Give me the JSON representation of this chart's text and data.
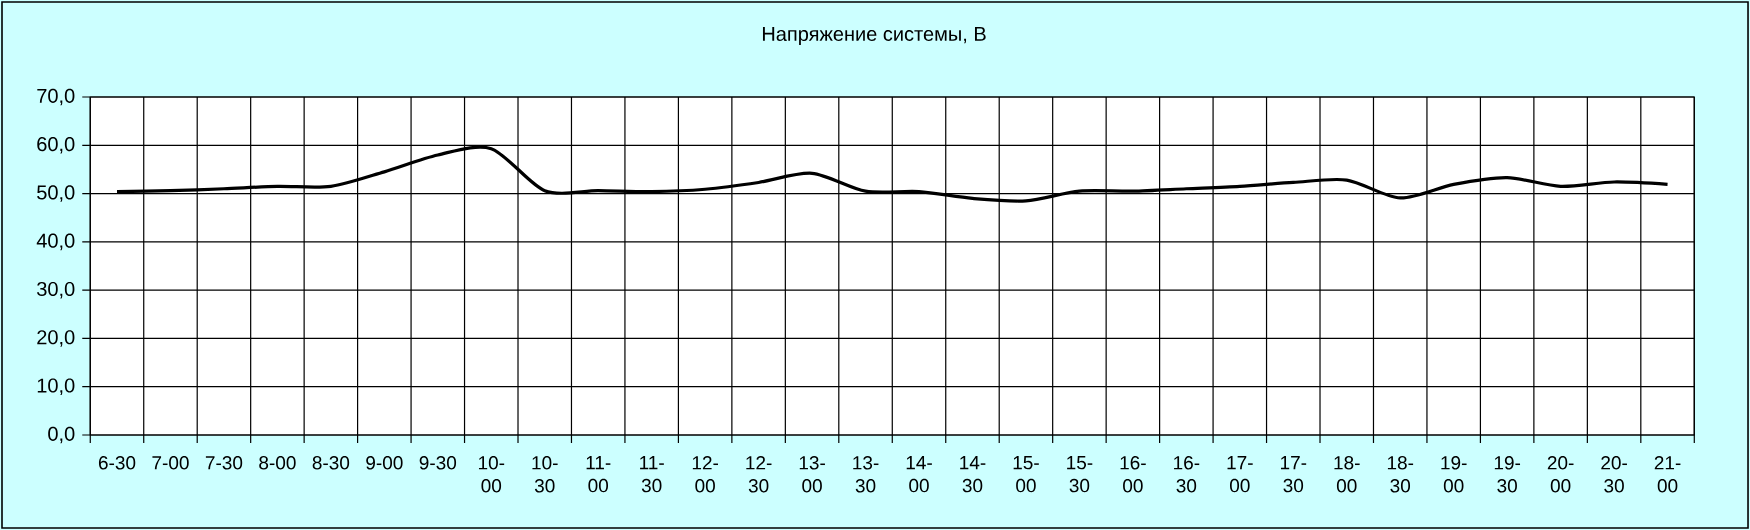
{
  "chart_data": {
    "type": "line",
    "title": "Напряжение системы, В",
    "categories": [
      "6-30",
      "7-00",
      "7-30",
      "8-00",
      "8-30",
      "9-00",
      "9-30",
      "10-00",
      "10-30",
      "11-00",
      "11-30",
      "12-00",
      "12-30",
      "13-00",
      "13-30",
      "14-00",
      "14-30",
      "15-00",
      "15-30",
      "16-00",
      "16-30",
      "17-00",
      "17-30",
      "18-00",
      "18-30",
      "19-00",
      "19-30",
      "20-00",
      "20-30",
      "21-00"
    ],
    "values": [
      50.4,
      50.6,
      51.0,
      51.5,
      51.5,
      54.5,
      58.0,
      59.3,
      50.6,
      50.6,
      50.4,
      50.9,
      52.3,
      54.2,
      50.5,
      50.4,
      49.0,
      48.5,
      50.5,
      50.5,
      51.0,
      51.5,
      52.3,
      52.8,
      49.1,
      51.9,
      53.3,
      51.5,
      52.4,
      51.9
    ],
    "color": "#000000",
    "ylim": [
      0,
      70
    ],
    "yticks": [
      {
        "value": 0,
        "label": "0,0"
      },
      {
        "value": 10,
        "label": "10,0"
      },
      {
        "value": 20,
        "label": "20,0"
      },
      {
        "value": 30,
        "label": "30,0"
      },
      {
        "value": 40,
        "label": "40,0"
      },
      {
        "value": 50,
        "label": "50,0"
      },
      {
        "value": 60,
        "label": "60,0"
      },
      {
        "value": 70,
        "label": "70,0"
      }
    ],
    "grid": true
  }
}
